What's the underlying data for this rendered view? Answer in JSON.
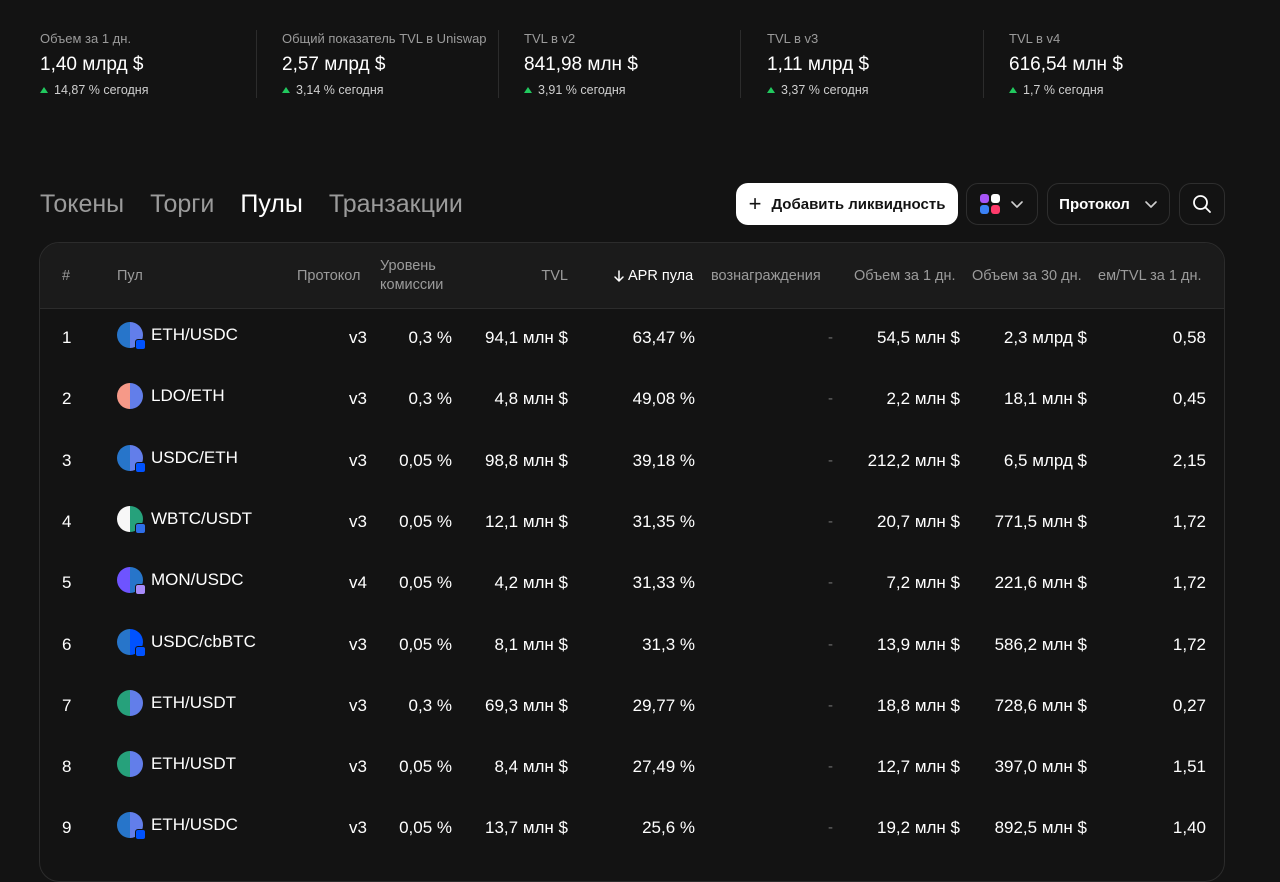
{
  "stats": [
    {
      "label": "Объем за 1 дн.",
      "value": "1,40 млрд $",
      "change": "14,87 % сегодня"
    },
    {
      "label": "Общий показатель TVL в Uniswap",
      "value": "2,57 млрд $",
      "change": "3,14 % сегодня"
    },
    {
      "label": "TVL в v2",
      "value": "841,98 млн $",
      "change": "3,91 % сегодня"
    },
    {
      "label": "TVL в v3",
      "value": "1,11 млрд $",
      "change": "3,37 % сегодня"
    },
    {
      "label": "TVL в v4",
      "value": "616,54 млн $",
      "change": "1,7 % сегодня"
    }
  ],
  "tabs": [
    {
      "label": "Токены",
      "active": false
    },
    {
      "label": "Торги",
      "active": false
    },
    {
      "label": "Пулы",
      "active": true
    },
    {
      "label": "Транзакции",
      "active": false
    }
  ],
  "toolbar": {
    "add_liquidity": "Добавить ликвидность",
    "protocol": "Протокол"
  },
  "table": {
    "headers": {
      "index": "#",
      "pool": "Пул",
      "protocol": "Протокол",
      "fee_line1": "Уровень",
      "fee_line2": "комиссии",
      "tvl": "TVL",
      "apr": "APR пула",
      "rewards": "вознаграждения",
      "vol1d": "Объем за 1 дн.",
      "vol30d": "Объем за 30 дн.",
      "voltvl": "ем/TVL за 1 дн."
    },
    "rows": [
      {
        "n": "1",
        "pool": "ETH/USDC",
        "proto": "v3",
        "fee": "0,3 %",
        "tvl": "94,1 млн $",
        "apr": "63,47 %",
        "rew": "-",
        "v1": "54,5 млн $",
        "v30": "2,3 млрд $",
        "ratio": "0,58",
        "icon": "usdc-eth"
      },
      {
        "n": "2",
        "pool": "LDO/ETH",
        "proto": "v3",
        "fee": "0,3 %",
        "tvl": "4,8 млн $",
        "apr": "49,08 %",
        "rew": "-",
        "v1": "2,2 млн $",
        "v30": "18,1 млн $",
        "ratio": "0,45",
        "icon": "ldo-eth"
      },
      {
        "n": "3",
        "pool": "USDC/ETH",
        "proto": "v3",
        "fee": "0,05 %",
        "tvl": "98,8 млн $",
        "apr": "39,18 %",
        "rew": "-",
        "v1": "212,2 млн $",
        "v30": "6,5 млрд $",
        "ratio": "2,15",
        "icon": "usdc-eth"
      },
      {
        "n": "4",
        "pool": "WBTC/USDT",
        "proto": "v3",
        "fee": "0,05 %",
        "tvl": "12,1 млн $",
        "apr": "31,35 %",
        "rew": "-",
        "v1": "20,7 млн $",
        "v30": "771,5 млн $",
        "ratio": "1,72",
        "icon": "wbtc-usdt"
      },
      {
        "n": "5",
        "pool": "MON/USDC",
        "proto": "v4",
        "fee": "0,05 %",
        "tvl": "4,2 млн $",
        "apr": "31,33 %",
        "rew": "-",
        "v1": "7,2 млн $",
        "v30": "221,6 млн $",
        "ratio": "1,72",
        "icon": "mon-usdc"
      },
      {
        "n": "6",
        "pool": "USDC/cbBTC",
        "proto": "v3",
        "fee": "0,05 %",
        "tvl": "8,1 млн $",
        "apr": "31,3 %",
        "rew": "-",
        "v1": "13,9 млн $",
        "v30": "586,2 млн $",
        "ratio": "1,72",
        "icon": "usdc-cbbtc"
      },
      {
        "n": "7",
        "pool": "ETH/USDT",
        "proto": "v3",
        "fee": "0,3 %",
        "tvl": "69,3 млн $",
        "apr": "29,77 %",
        "rew": "-",
        "v1": "18,8 млн $",
        "v30": "728,6 млн $",
        "ratio": "0,27",
        "icon": "usdt-eth"
      },
      {
        "n": "8",
        "pool": "ETH/USDT",
        "proto": "v3",
        "fee": "0,05 %",
        "tvl": "8,4 млн $",
        "apr": "27,49 %",
        "rew": "-",
        "v1": "12,7 млн $",
        "v30": "397,0 млн $",
        "ratio": "1,51",
        "icon": "usdt-eth"
      },
      {
        "n": "9",
        "pool": "ETH/USDC",
        "proto": "v3",
        "fee": "0,05 %",
        "tvl": "13,7 млн $",
        "apr": "25,6 %",
        "rew": "-",
        "v1": "19,2 млн $",
        "v30": "892,5 млн $",
        "ratio": "1,40",
        "icon": "usdc-eth"
      }
    ]
  },
  "colors": {
    "background": "#131313",
    "up": "#21c95e",
    "muted": "#9b9b9b"
  }
}
